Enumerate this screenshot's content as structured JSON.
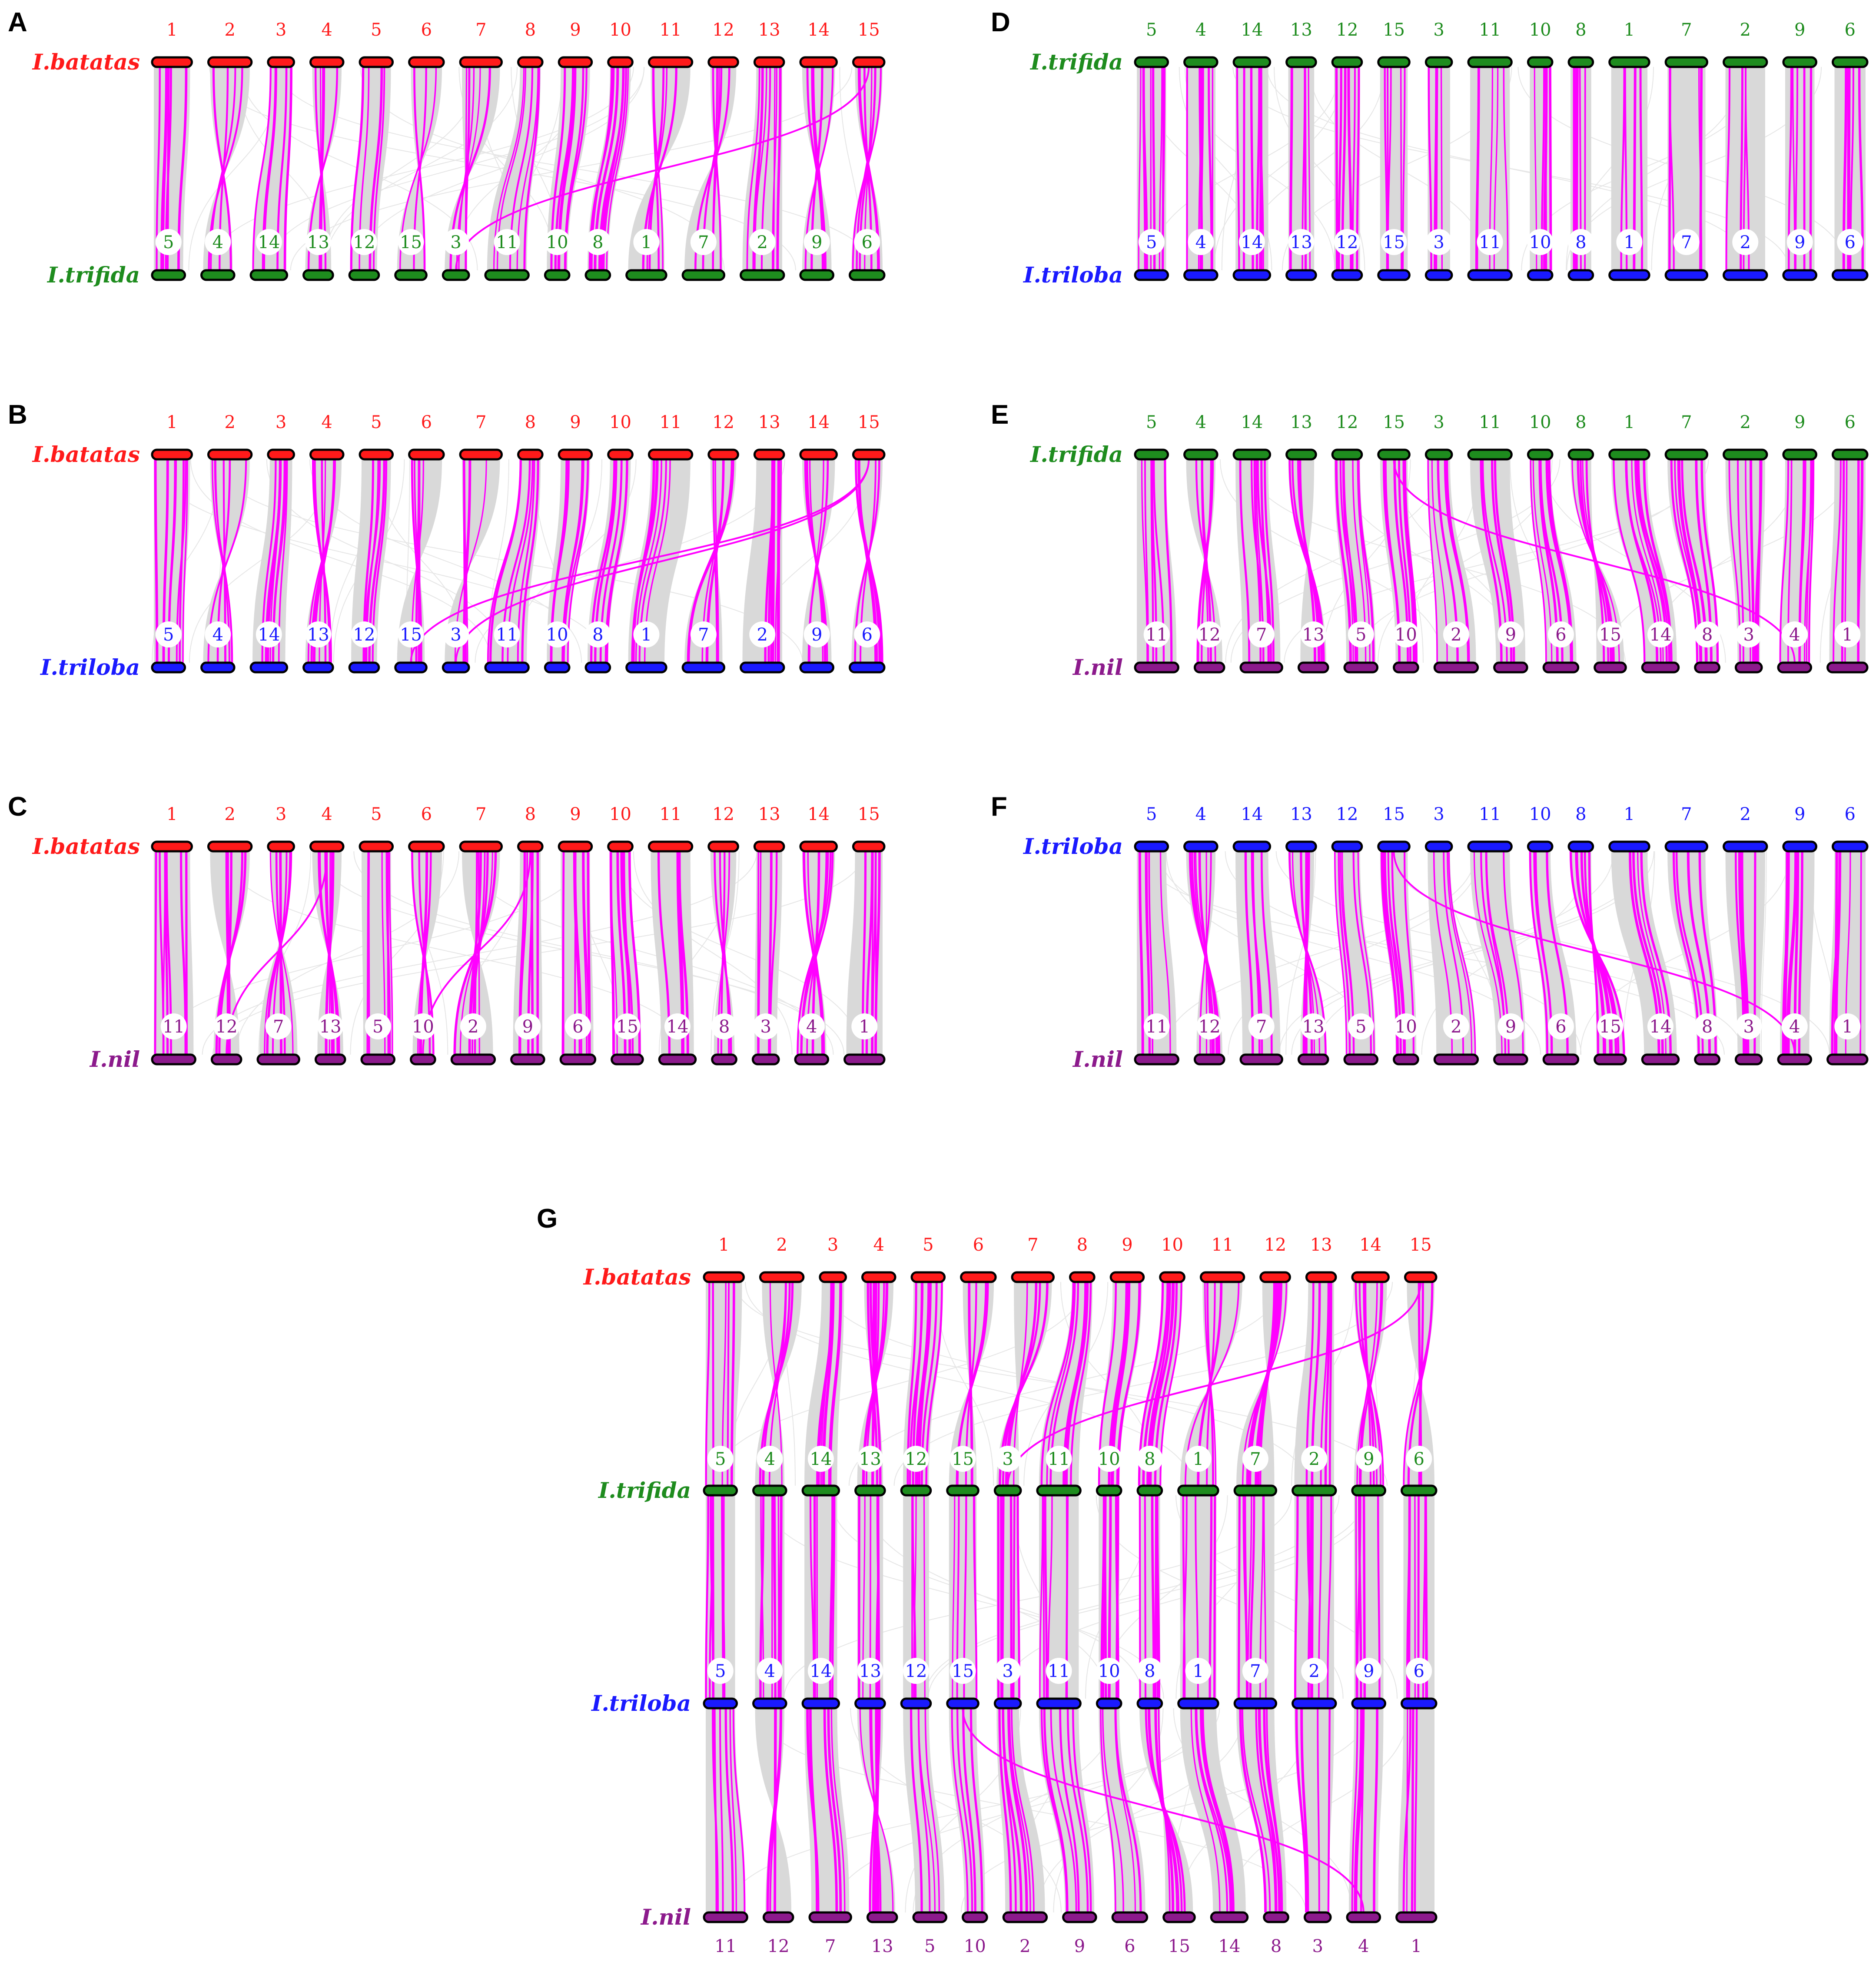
{
  "colors": {
    "batatas": "#ff1a1a",
    "trifida": "#1e8c1e",
    "triloba": "#1a1aff",
    "nil": "#8c1a8c",
    "synteny": "#d9d9d9",
    "highlight": "#ff00ff",
    "outline": "#000000"
  },
  "species": {
    "batatas": "I.batatas",
    "trifida": "I.trifida",
    "triloba": "I.triloba",
    "nil": "I.nil"
  },
  "panels": [
    {
      "letter": "A",
      "top": {
        "species": "batatas",
        "chroms": [
          "1",
          "2",
          "3",
          "4",
          "5",
          "6",
          "7",
          "8",
          "9",
          "10",
          "11",
          "12",
          "13",
          "14",
          "15"
        ]
      },
      "bottom": {
        "species": "trifida",
        "chroms": [
          "5",
          "4",
          "14",
          "13",
          "12",
          "15",
          "3",
          "11",
          "10",
          "8",
          "1",
          "7",
          "2",
          "9",
          "6"
        ]
      }
    },
    {
      "letter": "B",
      "top": {
        "species": "batatas",
        "chroms": [
          "1",
          "2",
          "3",
          "4",
          "5",
          "6",
          "7",
          "8",
          "9",
          "10",
          "11",
          "12",
          "13",
          "14",
          "15"
        ]
      },
      "bottom": {
        "species": "triloba",
        "chroms": [
          "5",
          "4",
          "14",
          "13",
          "12",
          "15",
          "3",
          "11",
          "10",
          "8",
          "1",
          "7",
          "2",
          "9",
          "6"
        ]
      }
    },
    {
      "letter": "C",
      "top": {
        "species": "batatas",
        "chroms": [
          "1",
          "2",
          "3",
          "4",
          "5",
          "6",
          "7",
          "8",
          "9",
          "10",
          "11",
          "12",
          "13",
          "14",
          "15"
        ]
      },
      "bottom": {
        "species": "nil",
        "chroms": [
          "11",
          "12",
          "7",
          "13",
          "5",
          "10",
          "2",
          "9",
          "6",
          "15",
          "14",
          "8",
          "3",
          "4",
          "1"
        ]
      }
    },
    {
      "letter": "D",
      "top": {
        "species": "trifida",
        "chroms": [
          "5",
          "4",
          "14",
          "13",
          "12",
          "15",
          "3",
          "11",
          "10",
          "8",
          "1",
          "7",
          "2",
          "9",
          "6"
        ]
      },
      "bottom": {
        "species": "triloba",
        "chroms": [
          "5",
          "4",
          "14",
          "13",
          "12",
          "15",
          "3",
          "11",
          "10",
          "8",
          "1",
          "7",
          "2",
          "9",
          "6"
        ]
      }
    },
    {
      "letter": "E",
      "top": {
        "species": "trifida",
        "chroms": [
          "5",
          "4",
          "14",
          "13",
          "12",
          "15",
          "3",
          "11",
          "10",
          "8",
          "1",
          "7",
          "2",
          "9",
          "6"
        ]
      },
      "bottom": {
        "species": "nil",
        "chroms": [
          "11",
          "12",
          "7",
          "13",
          "5",
          "10",
          "2",
          "9",
          "6",
          "15",
          "14",
          "8",
          "3",
          "4",
          "1"
        ]
      }
    },
    {
      "letter": "F",
      "top": {
        "species": "triloba",
        "chroms": [
          "5",
          "4",
          "14",
          "13",
          "12",
          "15",
          "3",
          "11",
          "10",
          "8",
          "1",
          "7",
          "2",
          "9",
          "6"
        ]
      },
      "bottom": {
        "species": "nil",
        "chroms": [
          "11",
          "12",
          "7",
          "13",
          "5",
          "10",
          "2",
          "9",
          "6",
          "15",
          "14",
          "8",
          "3",
          "4",
          "1"
        ]
      }
    },
    {
      "letter": "G",
      "tiers": [
        {
          "species": "batatas",
          "chroms": [
            "1",
            "2",
            "3",
            "4",
            "5",
            "6",
            "7",
            "8",
            "9",
            "10",
            "11",
            "12",
            "13",
            "14",
            "15"
          ]
        },
        {
          "species": "trifida",
          "chroms": [
            "5",
            "4",
            "14",
            "13",
            "12",
            "15",
            "3",
            "11",
            "10",
            "8",
            "1",
            "7",
            "2",
            "9",
            "6"
          ]
        },
        {
          "species": "triloba",
          "chroms": [
            "5",
            "4",
            "14",
            "13",
            "12",
            "15",
            "3",
            "11",
            "10",
            "8",
            "1",
            "7",
            "2",
            "9",
            "6"
          ]
        },
        {
          "species": "nil",
          "chroms": [
            "11",
            "12",
            "7",
            "13",
            "5",
            "10",
            "2",
            "9",
            "6",
            "15",
            "14",
            "8",
            "3",
            "4",
            "1"
          ]
        }
      ]
    }
  ]
}
